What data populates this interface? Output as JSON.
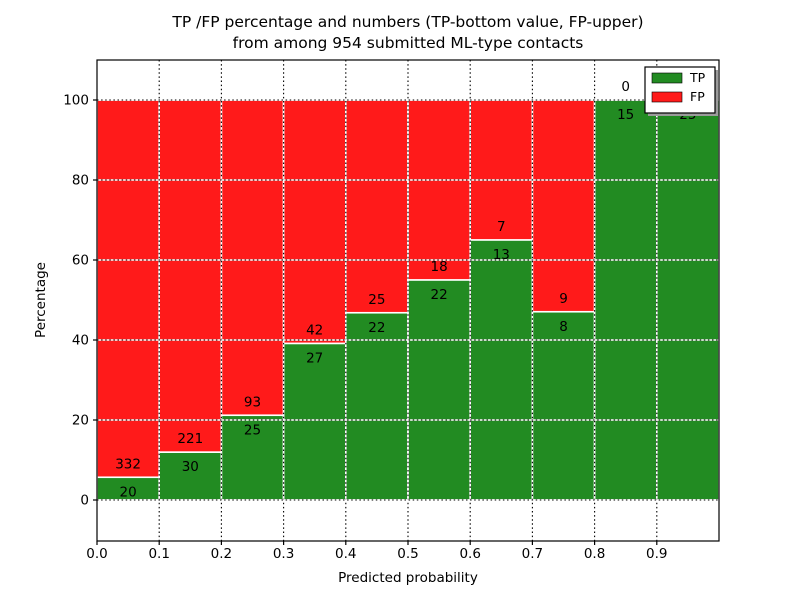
{
  "header": {
    "title_line1": "TP /FP percentage and numbers (TP-bottom value, FP-upper)",
    "title_line2": "from among 954 submitted ML-type contacts"
  },
  "chart_data": {
    "type": "bar",
    "variant": "stacked-percentage-histogram",
    "title": "TP /FP percentage and numbers (TP-bottom value, FP-upper)\nfrom among 954 submitted ML-type contacts",
    "xlabel": "Predicted probability",
    "ylabel": "Percentage",
    "total_contacts": 954,
    "bin_width": 0.1,
    "categories": [
      "0.0",
      "0.1",
      "0.2",
      "0.3",
      "0.4",
      "0.5",
      "0.6",
      "0.7",
      "0.8",
      "0.9"
    ],
    "xtick_labels": [
      "0.0",
      "0.1",
      "0.2",
      "0.3",
      "0.4",
      "0.5",
      "0.6",
      "0.7",
      "0.8",
      "0.9"
    ],
    "ytick_labels": [
      "0",
      "20",
      "40",
      "60",
      "80",
      "100"
    ],
    "ylim": [
      0,
      100
    ],
    "grid": true,
    "bar_edge_color": "#ffffff",
    "series": [
      {
        "name": "TP",
        "position": "bottom",
        "color": "#228b22",
        "values": [
          20,
          30,
          25,
          27,
          22,
          22,
          13,
          8,
          15,
          25
        ]
      },
      {
        "name": "FP",
        "position": "top",
        "color": "#ff1a1a",
        "values": [
          332,
          221,
          93,
          42,
          25,
          18,
          7,
          9,
          0,
          0
        ]
      }
    ],
    "tp_percent_of_bin": [
      5.7,
      12.0,
      21.2,
      39.1,
      46.8,
      55.0,
      65.0,
      47.1,
      100.0,
      100.0
    ],
    "legend": {
      "position": "upper right",
      "items": [
        {
          "label": "TP",
          "color": "#228b22"
        },
        {
          "label": "FP",
          "color": "#ff1a1a"
        }
      ]
    }
  }
}
